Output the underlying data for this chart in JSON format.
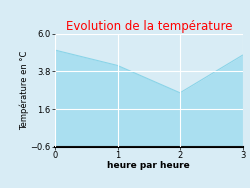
{
  "title": "Evolution de la température",
  "title_color": "#ff0000",
  "xlabel": "heure par heure",
  "ylabel": "Température en °C",
  "x": [
    0,
    1,
    2,
    3
  ],
  "y": [
    5.05,
    4.15,
    2.55,
    4.75
  ],
  "xlim": [
    0,
    3
  ],
  "ylim": [
    -0.6,
    6.0
  ],
  "yticks": [
    -0.6,
    1.6,
    3.8,
    6.0
  ],
  "xticks": [
    0,
    1,
    2,
    3
  ],
  "line_color": "#8ad4e8",
  "fill_color": "#aadff0",
  "fill_alpha": 1.0,
  "bg_color": "#d8ecf5",
  "figure_bg": "#d8ecf5",
  "grid_color": "#ffffff",
  "title_fontsize": 8.5,
  "label_fontsize": 6.5,
  "tick_fontsize": 6,
  "ylabel_fontsize": 6
}
